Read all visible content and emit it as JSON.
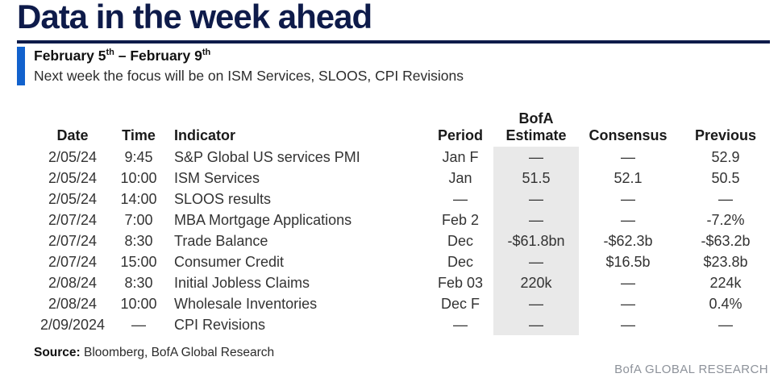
{
  "title": "Data in the week ahead",
  "subtitle": {
    "part1": "February 5",
    "sup1": "th",
    "part2": " – February 9",
    "sup2": "th",
    "note": "Next week the focus will be on ISM Services, SLOOS, CPI Revisions"
  },
  "table": {
    "headers": {
      "date": "Date",
      "time": "Time",
      "indicator": "Indicator",
      "period": "Period",
      "estimate_line1": "BofA",
      "estimate_line2": "Estimate",
      "consensus": "Consensus",
      "previous": "Previous"
    },
    "rows": [
      [
        "2/05/24",
        "9:45",
        "S&P Global US services PMI",
        "Jan F",
        "—",
        "—",
        "52.9"
      ],
      [
        "2/05/24",
        "10:00",
        "ISM Services",
        "Jan",
        "51.5",
        "52.1",
        "50.5"
      ],
      [
        "2/05/24",
        "14:00",
        "SLOOS results",
        "—",
        "—",
        "—",
        "—"
      ],
      [
        "2/07/24",
        "7:00",
        "MBA Mortgage Applications",
        "Feb 2",
        "—",
        "—",
        "-7.2%"
      ],
      [
        "2/07/24",
        "8:30",
        "Trade Balance",
        "Dec",
        "-$61.8bn",
        "-$62.3b",
        "-$63.2b"
      ],
      [
        "2/07/24",
        "15:00",
        "Consumer Credit",
        "Dec",
        "—",
        "$16.5b",
        "$23.8b"
      ],
      [
        "2/08/24",
        "8:30",
        "Initial Jobless Claims",
        "Feb 03",
        "220k",
        "—",
        "224k"
      ],
      [
        "2/08/24",
        "10:00",
        "Wholesale Inventories",
        "Dec F",
        "—",
        "—",
        "0.4%"
      ],
      [
        "2/09/2024",
        "—",
        "CPI Revisions",
        "—",
        "—",
        "—",
        "—"
      ]
    ]
  },
  "source": {
    "label": "Source:",
    "text": " Bloomberg, BofA Global Research"
  },
  "brand": "BofA GLOBAL RESEARCH",
  "colors": {
    "title_navy": "#0e1b4a",
    "accent_blue": "#1262cd",
    "estimate_highlight": "#e9e9e9",
    "body_text": "#333333",
    "brand_gray": "#8d929a"
  }
}
